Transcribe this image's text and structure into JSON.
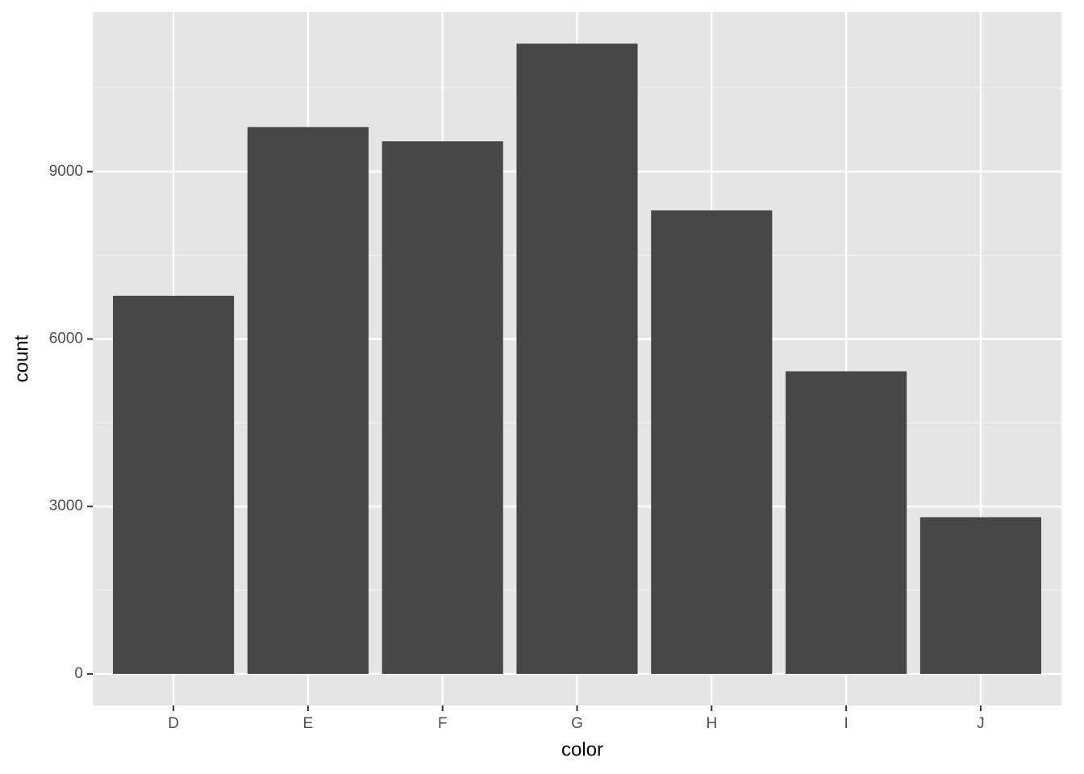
{
  "chart_data": {
    "type": "bar",
    "x_label": "color",
    "y_label": "count",
    "categories": [
      "D",
      "E",
      "F",
      "G",
      "H",
      "I",
      "J"
    ],
    "values": [
      6775,
      9797,
      9542,
      11292,
      8304,
      5422,
      2808
    ],
    "color": "#474747",
    "ylim": [
      -564.6,
      11856.6
    ],
    "yticks": [
      0,
      3000,
      6000,
      9000
    ],
    "grid": true
  }
}
